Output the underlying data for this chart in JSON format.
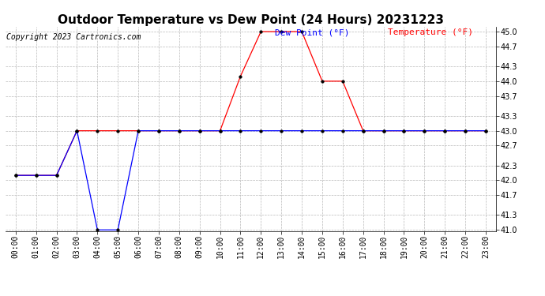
{
  "title": "Outdoor Temperature vs Dew Point (24 Hours) 20231223",
  "copyright": "Copyright 2023 Cartronics.com",
  "legend_dew": "Dew Point (°F)",
  "legend_temp": "Temperature (°F)",
  "hours": [
    "00:00",
    "01:00",
    "02:00",
    "03:00",
    "04:00",
    "05:00",
    "06:00",
    "07:00",
    "08:00",
    "09:00",
    "10:00",
    "11:00",
    "12:00",
    "13:00",
    "14:00",
    "15:00",
    "16:00",
    "17:00",
    "18:00",
    "19:00",
    "20:00",
    "21:00",
    "22:00",
    "23:00"
  ],
  "temperature": [
    42.1,
    42.1,
    42.1,
    43.0,
    43.0,
    43.0,
    43.0,
    43.0,
    43.0,
    43.0,
    43.0,
    44.1,
    45.0,
    45.0,
    45.0,
    44.0,
    44.0,
    43.0,
    43.0,
    43.0,
    43.0,
    43.0,
    43.0,
    43.0
  ],
  "dew_point": [
    42.1,
    42.1,
    42.1,
    43.0,
    41.0,
    41.0,
    43.0,
    43.0,
    43.0,
    43.0,
    43.0,
    43.0,
    43.0,
    43.0,
    43.0,
    43.0,
    43.0,
    43.0,
    43.0,
    43.0,
    43.0,
    43.0,
    43.0,
    43.0
  ],
  "temp_color": "red",
  "dew_color": "blue",
  "ylim_min": 41.0,
  "ylim_max": 45.0,
  "yticks": [
    41.0,
    41.3,
    41.7,
    42.0,
    42.3,
    42.7,
    43.0,
    43.3,
    43.7,
    44.0,
    44.3,
    44.7,
    45.0
  ],
  "bg_color": "#ffffff",
  "grid_color": "#b0b0b0",
  "title_fontsize": 11,
  "copyright_fontsize": 7,
  "legend_fontsize": 8,
  "tick_fontsize": 7
}
